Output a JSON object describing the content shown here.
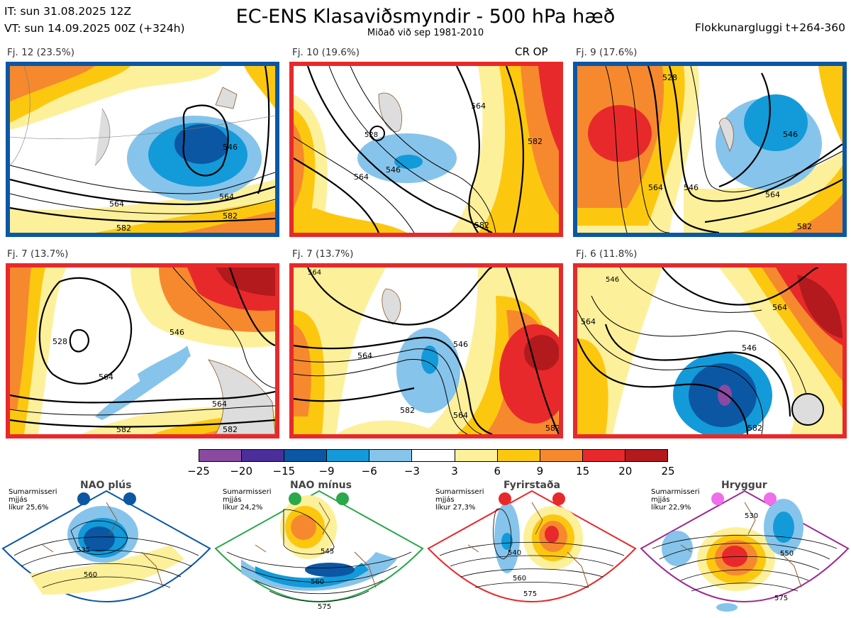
{
  "header": {
    "it_line": "IT: sun 31.08.2025 12Z",
    "vt_line": "VT: sun 14.09.2025 00Z  (+324h)",
    "title": "EC-ENS Klasaviðsmyndir - 500 hPa hæð",
    "subtitle": "Miðað við sep 1981-2010",
    "window": "Flokkunargluggi t+264-360"
  },
  "panels": [
    {
      "label": "Fj. 12 (23.5%)",
      "regime": "NAO plus",
      "border_color": "#0b57a4",
      "contours": [
        "564",
        "564",
        "582",
        "582",
        "546"
      ]
    },
    {
      "label": "Fj. 10 (19.6%)",
      "regime": "Fyrirstaða",
      "border_color": "#e8292b",
      "badge": "CR OP",
      "contours": [
        "546",
        "564",
        "564",
        "582",
        "582",
        "528"
      ]
    },
    {
      "label": "Fj. 9 (17.6%)",
      "regime": "NAO plus",
      "border_color": "#0b57a4",
      "contours": [
        "546",
        "546",
        "564",
        "564",
        "582",
        "528"
      ]
    },
    {
      "label": "Fj. 7 (13.7%)",
      "regime": "Fyrirstaða",
      "border_color": "#e8292b",
      "contours": [
        "528",
        "546",
        "564",
        "564",
        "582",
        "582"
      ]
    },
    {
      "label": "Fj. 7 (13.7%)",
      "regime": "Fyrirstaða",
      "border_color": "#e8292b",
      "contours": [
        "564",
        "546",
        "564",
        "564",
        "582",
        "582"
      ]
    },
    {
      "label": "Fj. 6 (11.8%)",
      "regime": "Fyrirstaða",
      "border_color": "#e8292b",
      "contours": [
        "546",
        "546",
        "564",
        "564",
        "582"
      ]
    }
  ],
  "colorbar": {
    "colors": [
      "#8b4aa2",
      "#4b2e99",
      "#0b57a4",
      "#139ad9",
      "#86c4eb",
      "#ffffff",
      "#fdf09a",
      "#fcc80f",
      "#f6892e",
      "#e8292b",
      "#b21a1d"
    ],
    "ticks": [
      "−25",
      "−20",
      "−15",
      "−9",
      "−6",
      "−3",
      "3",
      "6",
      "9",
      "15",
      "20",
      "25"
    ]
  },
  "regimes": [
    {
      "name": "NAO plús",
      "info": [
        "Sumarmisseri",
        "mjjás",
        "líkur 25,6%"
      ],
      "color": "#0b57a4",
      "contours": [
        "535",
        "560"
      ]
    },
    {
      "name": "NAO mínus",
      "info": [
        "Sumarmisseri",
        "mjjás",
        "líkur 24,2%"
      ],
      "color": "#2ba84a",
      "contours": [
        "545",
        "560",
        "575"
      ]
    },
    {
      "name": "Fyrirstaða",
      "info": [
        "Sumarmisseri",
        "mjjás",
        "líkur 27,3%"
      ],
      "color": "#e8292b",
      "contours": [
        "540",
        "560",
        "575"
      ]
    },
    {
      "name": "Hryggur",
      "info": [
        "Sumarmisseri",
        "mjjás",
        "líkur 22,9%"
      ],
      "color": "#9b2b93",
      "dot_color": "#ef6ee9",
      "contours": [
        "530",
        "550",
        "575"
      ]
    }
  ]
}
